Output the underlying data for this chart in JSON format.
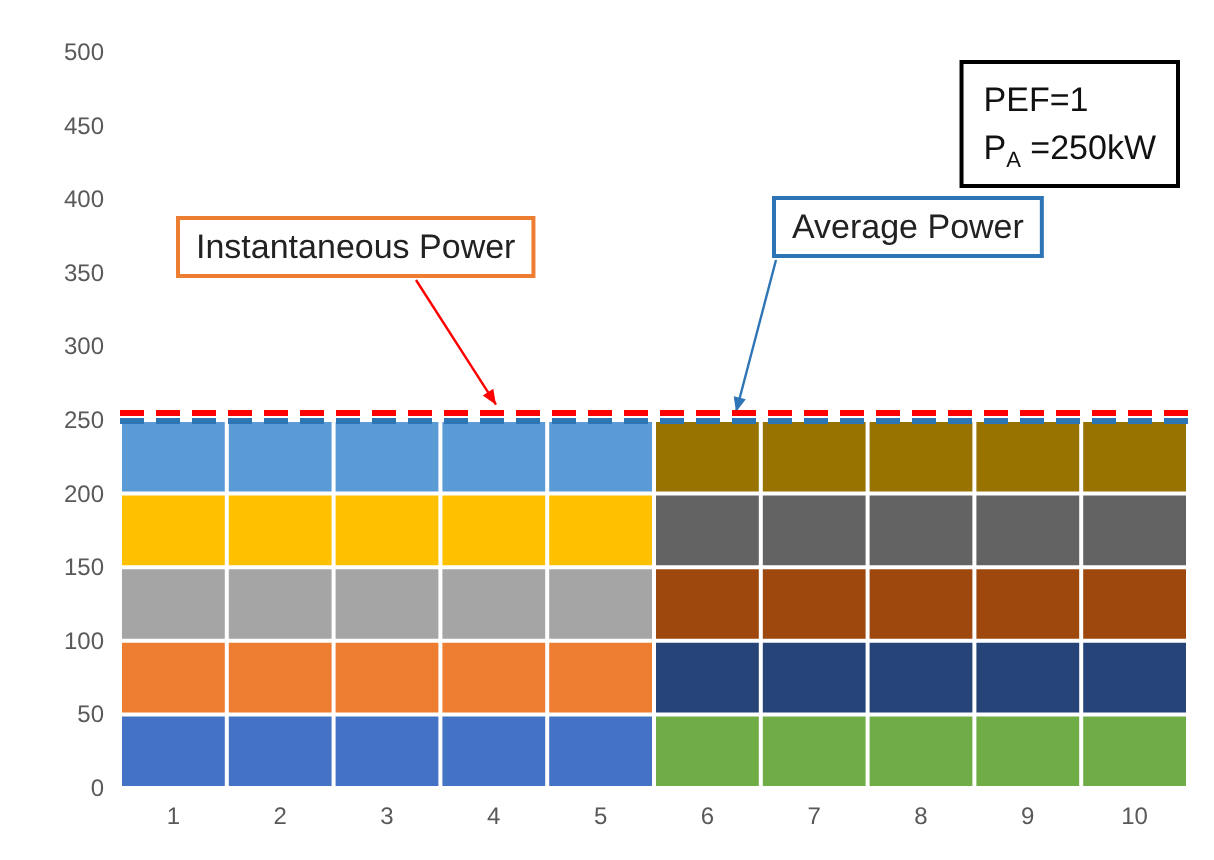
{
  "chart_data": {
    "type": "bar",
    "stacked": true,
    "categories": [
      "1",
      "2",
      "3",
      "4",
      "5",
      "6",
      "7",
      "8",
      "9",
      "10"
    ],
    "series": [
      {
        "values": [
          50,
          50,
          50,
          50,
          50,
          50,
          50,
          50,
          50,
          50
        ],
        "colors": [
          "#4472c4",
          "#4472c4",
          "#4472c4",
          "#4472c4",
          "#4472c4",
          "#70ad47",
          "#70ad47",
          "#70ad47",
          "#70ad47",
          "#70ad47"
        ]
      },
      {
        "values": [
          50,
          50,
          50,
          50,
          50,
          50,
          50,
          50,
          50,
          50
        ],
        "colors": [
          "#ed7d31",
          "#ed7d31",
          "#ed7d31",
          "#ed7d31",
          "#ed7d31",
          "#264478",
          "#264478",
          "#264478",
          "#264478",
          "#264478"
        ]
      },
      {
        "values": [
          50,
          50,
          50,
          50,
          50,
          50,
          50,
          50,
          50,
          50
        ],
        "colors": [
          "#a5a5a5",
          "#a5a5a5",
          "#a5a5a5",
          "#a5a5a5",
          "#a5a5a5",
          "#9e480e",
          "#9e480e",
          "#9e480e",
          "#9e480e",
          "#9e480e"
        ]
      },
      {
        "values": [
          50,
          50,
          50,
          50,
          50,
          50,
          50,
          50,
          50,
          50
        ],
        "colors": [
          "#ffc000",
          "#ffc000",
          "#ffc000",
          "#ffc000",
          "#ffc000",
          "#636363",
          "#636363",
          "#636363",
          "#636363",
          "#636363"
        ]
      },
      {
        "values": [
          50,
          50,
          50,
          50,
          50,
          50,
          50,
          50,
          50,
          50
        ],
        "colors": [
          "#5b9bd5",
          "#5b9bd5",
          "#5b9bd5",
          "#5b9bd5",
          "#5b9bd5",
          "#997300",
          "#997300",
          "#997300",
          "#997300",
          "#997300"
        ]
      }
    ],
    "ylim": [
      0,
      500
    ],
    "yticks": [
      0,
      50,
      100,
      150,
      200,
      250,
      300,
      350,
      400,
      450,
      500
    ],
    "grid": false,
    "ref_lines": [
      {
        "axis": "y",
        "value": 250,
        "label": "Average Power",
        "color": "#2e75b6",
        "line_style": "dashed"
      },
      {
        "axis": "y",
        "value": 255,
        "label": "Instantaneous Power",
        "color": "#ff0000",
        "line_style": "dashed"
      }
    ],
    "annotations": [
      "PEF=1\nP$_{A}$ =250kW"
    ]
  }
}
